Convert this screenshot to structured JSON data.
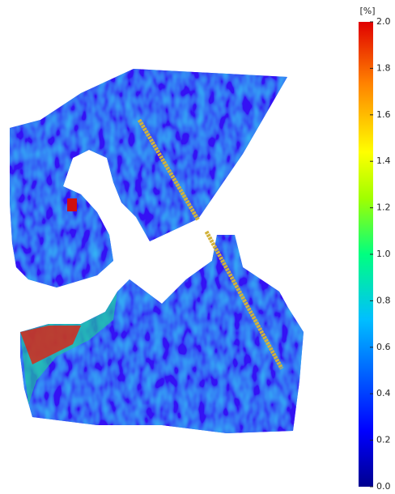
{
  "colorbar": {
    "unit": "[%]",
    "range": [
      0,
      2
    ],
    "ticks": [
      {
        "value": 0,
        "label": "0.0"
      },
      {
        "value": 0.2,
        "label": "0.2"
      },
      {
        "value": 0.4,
        "label": "0.4"
      },
      {
        "value": 0.6,
        "label": "0.6"
      },
      {
        "value": 0.8,
        "label": "0.8"
      },
      {
        "value": 1,
        "label": "1.0"
      },
      {
        "value": 1.2,
        "label": "1.2"
      },
      {
        "value": 1.4,
        "label": "1.4"
      },
      {
        "value": 1.6,
        "label": "1.6"
      },
      {
        "value": 1.8,
        "label": "1.8"
      },
      {
        "value": 2,
        "label": "2.0"
      }
    ]
  }
}
